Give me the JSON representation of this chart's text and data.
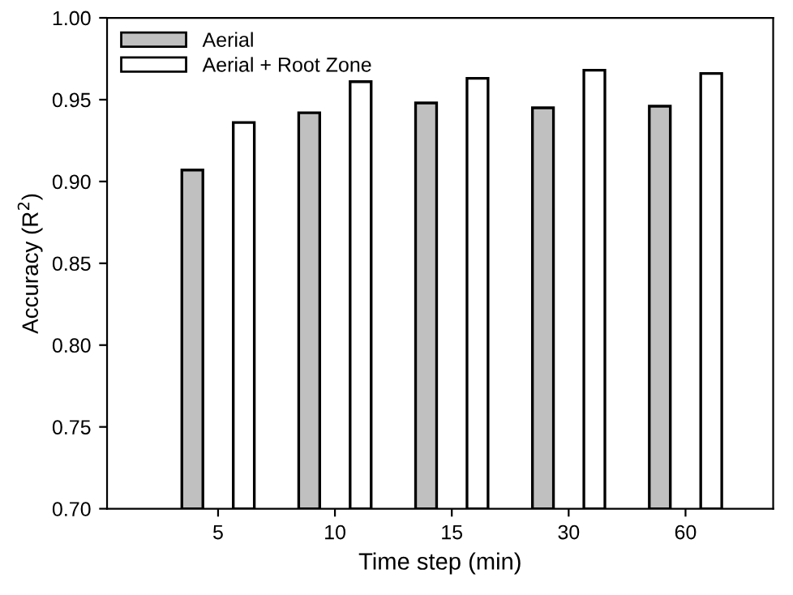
{
  "chart_data": {
    "type": "bar",
    "xlabel": "Time step (min)",
    "ylabel": "Accuracy (R$^{2}$)",
    "categories": [
      "5",
      "10",
      "15",
      "30",
      "60"
    ],
    "series": [
      {
        "name": "Aerial",
        "color": "#c0c0c0",
        "values": [
          0.907,
          0.942,
          0.948,
          0.945,
          0.946
        ]
      },
      {
        "name": "Aerial + Root Zone",
        "color": "#ffffff",
        "values": [
          0.936,
          0.961,
          0.963,
          0.968,
          0.966
        ]
      }
    ],
    "ylim": [
      0.7,
      1.0
    ],
    "yticks": [
      {
        "value": 0.7,
        "label": "0.70"
      },
      {
        "value": 0.75,
        "label": "0.75"
      },
      {
        "value": 0.8,
        "label": "0.80"
      },
      {
        "value": 0.85,
        "label": "0.85"
      },
      {
        "value": 0.9,
        "label": "0.90"
      },
      {
        "value": 0.95,
        "label": "0.95"
      },
      {
        "value": 1.0,
        "label": "1.00"
      }
    ],
    "grid": false,
    "legend": "top left"
  }
}
